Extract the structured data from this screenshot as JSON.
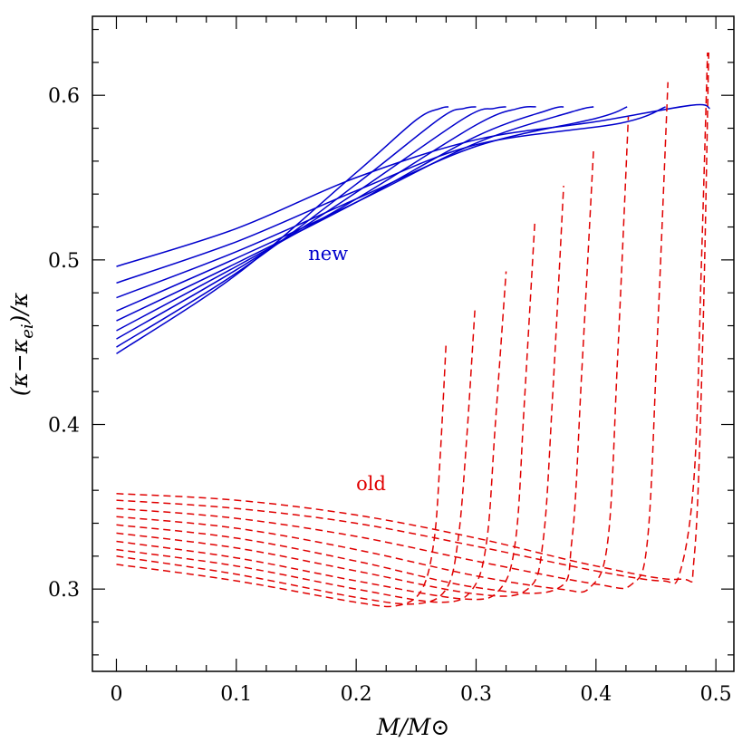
{
  "chart_data": {
    "type": "line",
    "xlabel": "M/M⊙",
    "ylabel": "(κ−κ_ei)/κ",
    "xlim": [
      -0.02,
      0.515
    ],
    "ylim": [
      0.25,
      0.648
    ],
    "x_ticks": [
      0,
      0.1,
      0.2,
      0.3,
      0.4,
      0.5
    ],
    "y_ticks": [
      0.3,
      0.4,
      0.5,
      0.6
    ],
    "x_tick_labels": [
      "0",
      "0.1",
      "0.2",
      "0.3",
      "0.4",
      "0.5"
    ],
    "y_tick_labels": [
      "0.3",
      "0.4",
      "0.5",
      "0.6"
    ],
    "grid": false,
    "colors": {
      "new": "#0000cc",
      "old": "#e00000"
    },
    "annotations": [
      {
        "text": "new",
        "x": 0.16,
        "y": 0.5,
        "color": "#0000cc"
      },
      {
        "text": "old",
        "x": 0.2,
        "y": 0.36,
        "color": "#e00000"
      }
    ],
    "series": [
      {
        "group": "new",
        "style": "solid",
        "x": [
          0,
          0.1,
          0.2,
          0.25,
          0.27,
          0.277
        ],
        "y": [
          0.443,
          0.491,
          0.553,
          0.585,
          0.592,
          0.593
        ]
      },
      {
        "group": "new",
        "style": "solid",
        "x": [
          0,
          0.1,
          0.2,
          0.27,
          0.29,
          0.3
        ],
        "y": [
          0.447,
          0.492,
          0.546,
          0.586,
          0.592,
          0.593
        ]
      },
      {
        "group": "new",
        "style": "solid",
        "x": [
          0,
          0.1,
          0.2,
          0.29,
          0.315,
          0.325
        ],
        "y": [
          0.452,
          0.494,
          0.541,
          0.586,
          0.592,
          0.593
        ]
      },
      {
        "group": "new",
        "style": "solid",
        "x": [
          0,
          0.1,
          0.2,
          0.3,
          0.335,
          0.35
        ],
        "y": [
          0.457,
          0.496,
          0.537,
          0.582,
          0.592,
          0.593
        ]
      },
      {
        "group": "new",
        "style": "solid",
        "x": [
          0,
          0.1,
          0.2,
          0.3,
          0.36,
          0.373
        ],
        "y": [
          0.463,
          0.498,
          0.535,
          0.575,
          0.591,
          0.593
        ]
      },
      {
        "group": "new",
        "style": "solid",
        "x": [
          0,
          0.1,
          0.2,
          0.3,
          0.38,
          0.398
        ],
        "y": [
          0.469,
          0.501,
          0.535,
          0.571,
          0.59,
          0.593
        ]
      },
      {
        "group": "new",
        "style": "solid",
        "x": [
          0,
          0.1,
          0.2,
          0.3,
          0.4,
          0.426
        ],
        "y": [
          0.477,
          0.505,
          0.537,
          0.569,
          0.586,
          0.593
        ]
      },
      {
        "group": "new",
        "style": "solid",
        "x": [
          0,
          0.1,
          0.2,
          0.3,
          0.42,
          0.458
        ],
        "y": [
          0.486,
          0.511,
          0.542,
          0.57,
          0.583,
          0.593
        ]
      },
      {
        "group": "new",
        "style": "solid",
        "x": [
          0,
          0.1,
          0.2,
          0.3,
          0.4,
          0.48,
          0.495
        ],
        "y": [
          0.496,
          0.519,
          0.55,
          0.573,
          0.584,
          0.594,
          0.592
        ]
      },
      {
        "group": "old",
        "style": "dashed",
        "x": [
          0,
          0.1,
          0.2,
          0.235,
          0.255,
          0.265,
          0.27,
          0.275
        ],
        "y": [
          0.315,
          0.305,
          0.292,
          0.29,
          0.3,
          0.33,
          0.38,
          0.45
        ]
      },
      {
        "group": "old",
        "style": "dashed",
        "x": [
          0,
          0.1,
          0.2,
          0.25,
          0.275,
          0.285,
          0.292,
          0.299
        ],
        "y": [
          0.32,
          0.309,
          0.295,
          0.291,
          0.3,
          0.33,
          0.39,
          0.47
        ]
      },
      {
        "group": "old",
        "style": "dashed",
        "x": [
          0,
          0.1,
          0.2,
          0.27,
          0.297,
          0.309,
          0.316,
          0.325
        ],
        "y": [
          0.324,
          0.314,
          0.3,
          0.292,
          0.3,
          0.33,
          0.4,
          0.493
        ]
      },
      {
        "group": "old",
        "style": "dashed",
        "x": [
          0,
          0.1,
          0.2,
          0.29,
          0.32,
          0.333,
          0.34,
          0.349
        ],
        "y": [
          0.329,
          0.319,
          0.305,
          0.294,
          0.3,
          0.33,
          0.41,
          0.523
        ]
      },
      {
        "group": "old",
        "style": "dashed",
        "x": [
          0,
          0.1,
          0.2,
          0.3,
          0.343,
          0.356,
          0.364,
          0.373
        ],
        "y": [
          0.334,
          0.325,
          0.311,
          0.297,
          0.3,
          0.33,
          0.42,
          0.545
        ]
      },
      {
        "group": "old",
        "style": "dashed",
        "x": [
          0,
          0.1,
          0.2,
          0.3,
          0.367,
          0.38,
          0.388,
          0.398
        ],
        "y": [
          0.339,
          0.331,
          0.317,
          0.301,
          0.3,
          0.33,
          0.43,
          0.568
        ]
      },
      {
        "group": "old",
        "style": "dashed",
        "x": [
          0,
          0.1,
          0.2,
          0.3,
          0.37,
          0.395,
          0.41,
          0.418,
          0.427
        ],
        "y": [
          0.344,
          0.337,
          0.324,
          0.308,
          0.3,
          0.301,
          0.33,
          0.44,
          0.587
        ]
      },
      {
        "group": "old",
        "style": "dashed",
        "x": [
          0,
          0.1,
          0.2,
          0.3,
          0.4,
          0.43,
          0.443,
          0.451,
          0.46
        ],
        "y": [
          0.349,
          0.343,
          0.332,
          0.317,
          0.303,
          0.303,
          0.33,
          0.45,
          0.608
        ]
      },
      {
        "group": "old",
        "style": "dashed",
        "x": [
          0,
          0.1,
          0.2,
          0.3,
          0.4,
          0.455,
          0.47,
          0.482,
          0.488,
          0.493
        ],
        "y": [
          0.354,
          0.349,
          0.34,
          0.326,
          0.311,
          0.305,
          0.31,
          0.37,
          0.5,
          0.626
        ]
      },
      {
        "group": "old",
        "style": "dashed",
        "x": [
          0,
          0.1,
          0.2,
          0.3,
          0.4,
          0.47,
          0.482,
          0.489,
          0.494
        ],
        "y": [
          0.358,
          0.354,
          0.345,
          0.331,
          0.314,
          0.306,
          0.32,
          0.45,
          0.626
        ]
      }
    ]
  }
}
